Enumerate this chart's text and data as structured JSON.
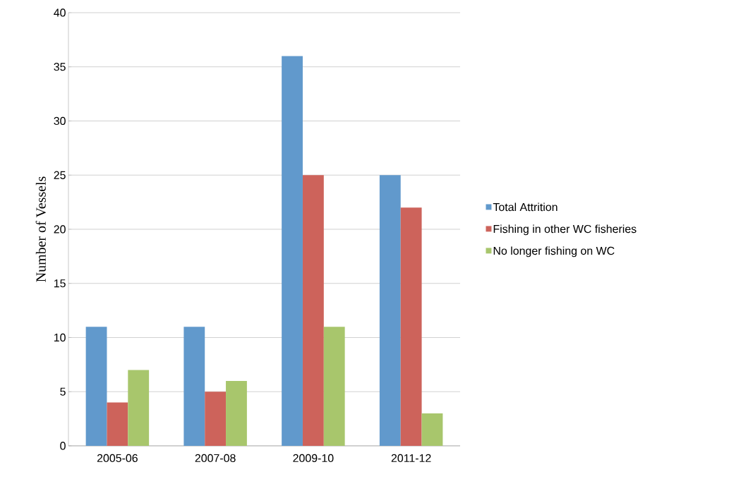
{
  "chart_data": {
    "type": "bar",
    "ylabel": "Number of Vessels",
    "categories": [
      "2005-06",
      "2007-08",
      "2009-10",
      "2011-12"
    ],
    "series": [
      {
        "name": "Total Attrition",
        "color": "#6199cc",
        "values": [
          11,
          11,
          36,
          25
        ]
      },
      {
        "name": "Fishing in other WC fisheries",
        "color": "#cd635b",
        "values": [
          4,
          5,
          25,
          22
        ]
      },
      {
        "name": "No longer fishing on WC",
        "color": "#a8c66c",
        "values": [
          7,
          6,
          11,
          3
        ]
      }
    ],
    "ylim": [
      0,
      40
    ],
    "yticks": [
      0,
      5,
      10,
      15,
      20,
      25,
      30,
      35,
      40
    ],
    "grid": "y",
    "legend": "right"
  }
}
